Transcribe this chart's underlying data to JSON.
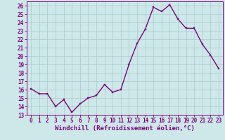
{
  "x": [
    0,
    1,
    2,
    3,
    4,
    5,
    6,
    7,
    8,
    9,
    10,
    11,
    12,
    13,
    14,
    15,
    16,
    17,
    18,
    19,
    20,
    21,
    22,
    23
  ],
  "y": [
    16.1,
    15.5,
    15.5,
    14.0,
    14.8,
    13.3,
    14.3,
    15.0,
    15.3,
    16.6,
    15.7,
    16.0,
    19.0,
    21.5,
    23.2,
    25.8,
    25.3,
    26.1,
    24.4,
    23.3,
    23.3,
    21.4,
    20.1,
    18.5
  ],
  "line_color": "#800080",
  "marker": "s",
  "marker_size": 2,
  "bg_color": "#cce8e8",
  "grid_color": "#aacccc",
  "xlabel": "Windchill (Refroidissement éolien,°C)",
  "ylim": [
    13,
    26.5
  ],
  "yticks": [
    13,
    14,
    15,
    16,
    17,
    18,
    19,
    20,
    21,
    22,
    23,
    24,
    25,
    26
  ],
  "xlim": [
    -0.5,
    23.5
  ],
  "xticks": [
    0,
    1,
    2,
    3,
    4,
    5,
    6,
    7,
    8,
    9,
    10,
    11,
    12,
    13,
    14,
    15,
    16,
    17,
    18,
    19,
    20,
    21,
    22,
    23
  ],
  "tick_fontsize": 5.5,
  "xlabel_fontsize": 6.5,
  "line_width": 1.0
}
